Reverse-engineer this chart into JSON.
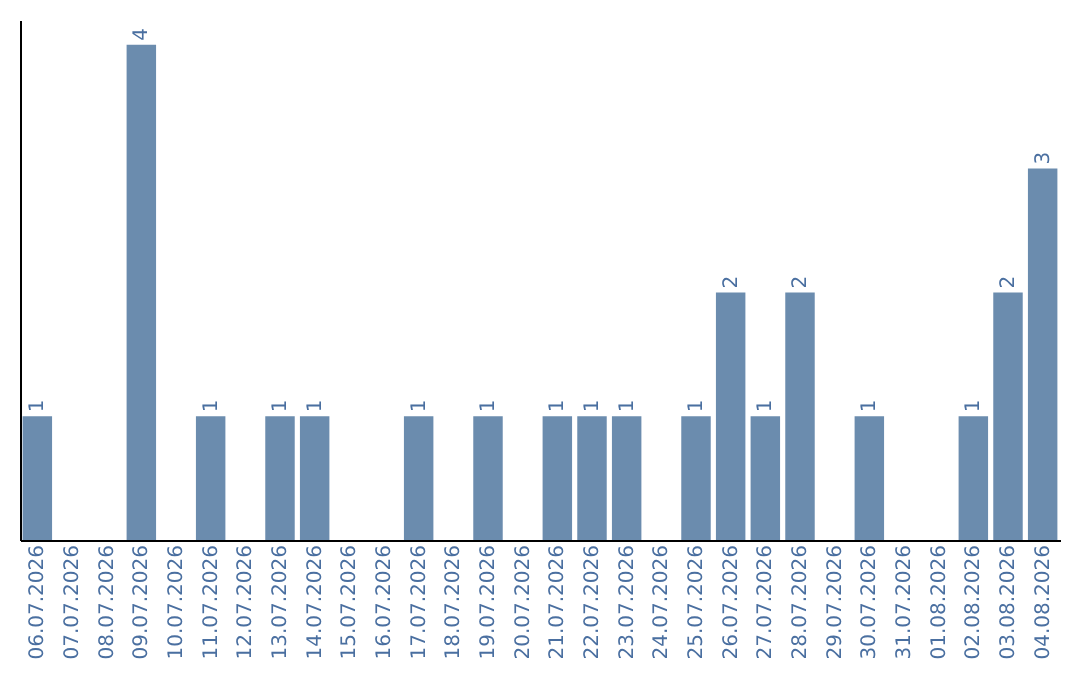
{
  "chart_data": {
    "type": "bar",
    "categories": [
      "06.07.2026",
      "07.07.2026",
      "08.07.2026",
      "09.07.2026",
      "10.07.2026",
      "11.07.2026",
      "12.07.2026",
      "13.07.2026",
      "14.07.2026",
      "15.07.2026",
      "16.07.2026",
      "17.07.2026",
      "18.07.2026",
      "19.07.2026",
      "20.07.2026",
      "21.07.2026",
      "22.07.2026",
      "23.07.2026",
      "24.07.2026",
      "25.07.2026",
      "26.07.2026",
      "27.07.2026",
      "28.07.2026",
      "29.07.2026",
      "30.07.2026",
      "31.07.2026",
      "01.08.2026",
      "02.08.2026",
      "03.08.2026",
      "04.08.2026"
    ],
    "values": [
      1,
      null,
      null,
      4,
      null,
      1,
      null,
      1,
      1,
      null,
      null,
      1,
      null,
      1,
      null,
      1,
      1,
      1,
      null,
      1,
      2,
      1,
      2,
      null,
      1,
      null,
      null,
      1,
      2,
      3
    ],
    "color": "#6b8cae",
    "ylim": [
      0,
      4.2
    ],
    "tick_labels": "x",
    "data_labels": true
  }
}
